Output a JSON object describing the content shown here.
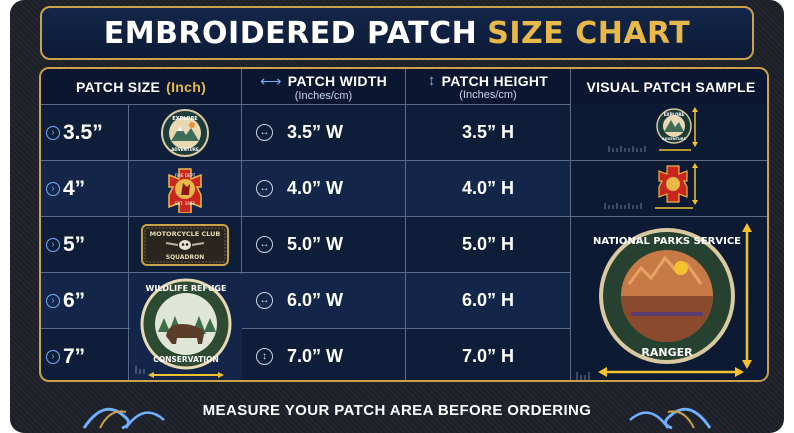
{
  "title": {
    "part1": "EMBROIDERED PATCH",
    "part2": "SIZE CHART"
  },
  "headers": {
    "size": {
      "main": "PATCH SIZE",
      "accent": "(Inch)"
    },
    "width": {
      "main": "PATCH WIDTH",
      "sub": "(Inches/cm)"
    },
    "height": {
      "main": "PATCH HEIGHT",
      "sub": "(Inches/cm)"
    },
    "visual": {
      "main": "VISUAL PATCH SAMPLE"
    }
  },
  "rows": [
    {
      "size": "3.5”",
      "width": "3.5” W",
      "height": "3.5” H"
    },
    {
      "size": "4”",
      "width": "4.0” W",
      "height": "4.0” H"
    },
    {
      "size": "5”",
      "width": "5.0” W",
      "height": "5.0” H"
    },
    {
      "size": "6”",
      "width": "6.0” W",
      "height": "6.0” H"
    },
    {
      "size": "7”",
      "width": "7.0” W",
      "height": "7.0” H"
    }
  ],
  "patches": {
    "explore": {
      "top": "EXPLORE",
      "bottom": "ADVENTURE"
    },
    "fire": {
      "top": "FIRE DEPT",
      "bottom": "EST. 1982"
    },
    "moto": {
      "top": "MOTORCYCLE CLUB",
      "bottom": "SQUADRON"
    },
    "wildlife": {
      "top": "WILDLIFE REFUGE",
      "bottom": "CONSERVATION"
    },
    "park": {
      "top": "NATIONAL PARKS SERVICE",
      "bottom": "RANGER"
    }
  },
  "footer": "MEASURE YOUR PATCH AREA BEFORE ORDERING",
  "colors": {
    "navy": "#0f1e38",
    "gold": "#c9a24a",
    "accent": "#e8b84a",
    "blue": "#6fb0ff",
    "ruler": "#f2c230"
  }
}
